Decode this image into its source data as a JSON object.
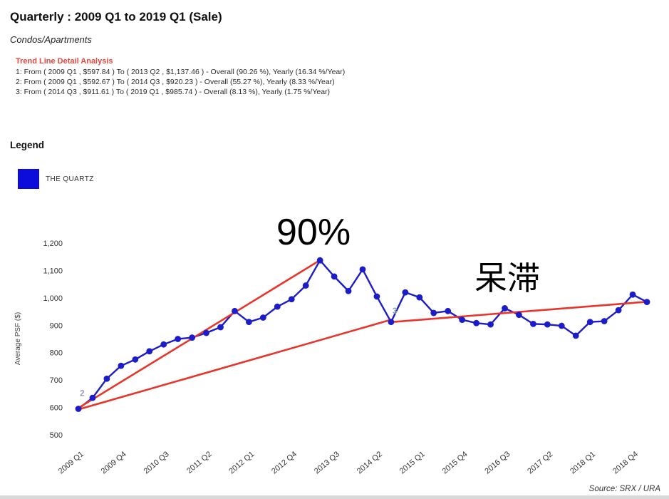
{
  "header": {
    "title": "Quarterly : 2009 Q1 to 2019 Q1 (Sale)",
    "subtitle": "Condos/Apartments"
  },
  "trend_analysis": {
    "heading": "Trend Line Detail Analysis",
    "lines": [
      "1: From ( 2009 Q1 , $597.84 ) To ( 2013 Q2 , $1,137.46 ) - Overall (90.26 %), Yearly (16.34 %/Year)",
      "2: From ( 2009 Q1 , $592.67 ) To ( 2014 Q3 , $920.23 ) - Overall (55.27 %), Yearly (8.33 %/Year)",
      "3: From ( 2014 Q3 , $911.61 ) To ( 2019 Q1 , $985.74 ) - Overall (8.13 %), Yearly (1.75 %/Year)"
    ]
  },
  "legend": {
    "heading": "Legend",
    "items": [
      {
        "label": "THE QUARTZ",
        "color": "#0d0ddb"
      }
    ]
  },
  "annotations": {
    "peak_gain": "90%",
    "stagnant": "呆滞"
  },
  "footer": {
    "source": "Source: SRX / URA"
  },
  "chart_data": {
    "type": "line",
    "title": "Quarterly : 2009 Q1 to 2019 Q1 (Sale)",
    "xlabel": "",
    "ylabel": "Average PSF ($)",
    "ylim": [
      500,
      1200
    ],
    "y_ticks": [
      500,
      600,
      700,
      800,
      900,
      1000,
      1100,
      1200
    ],
    "x_tick_every": 3,
    "grid": false,
    "legend_position": "top-left",
    "trend_color": "#e8352c",
    "categories": [
      "2009 Q1",
      "2009 Q2",
      "2009 Q3",
      "2009 Q4",
      "2010 Q1",
      "2010 Q2",
      "2010 Q3",
      "2010 Q4",
      "2011 Q1",
      "2011 Q2",
      "2011 Q3",
      "2011 Q4",
      "2012 Q1",
      "2012 Q2",
      "2012 Q3",
      "2012 Q4",
      "2013 Q1",
      "2013 Q2",
      "2013 Q3",
      "2013 Q4",
      "2014 Q1",
      "2014 Q2",
      "2014 Q3",
      "2014 Q4",
      "2015 Q1",
      "2015 Q2",
      "2015 Q3",
      "2015 Q4",
      "2016 Q1",
      "2016 Q2",
      "2016 Q3",
      "2016 Q4",
      "2017 Q1",
      "2017 Q2",
      "2017 Q3",
      "2017 Q4",
      "2018 Q1",
      "2018 Q2",
      "2018 Q3",
      "2018 Q4",
      "2019 Q1"
    ],
    "series": [
      {
        "name": "THE QUARTZ",
        "color": "#1c1cc8",
        "values": [
          595,
          635,
          705,
          752,
          775,
          805,
          830,
          850,
          855,
          872,
          893,
          952,
          912,
          928,
          968,
          995,
          1045,
          1137,
          1078,
          1025,
          1104,
          1005,
          912,
          1020,
          1002,
          945,
          952,
          920,
          908,
          903,
          962,
          938,
          905,
          903,
          898,
          862,
          912,
          915,
          955,
          1012,
          985
        ]
      }
    ],
    "trend_lines": [
      {
        "id": 1,
        "from": {
          "x": "2009 Q1",
          "value": 597.84
        },
        "to": {
          "x": "2013 Q2",
          "value": 1137.46
        },
        "overall_pct": 90.26,
        "yearly_pct": 16.34
      },
      {
        "id": 2,
        "from": {
          "x": "2009 Q1",
          "value": 592.67
        },
        "to": {
          "x": "2014 Q3",
          "value": 920.23
        },
        "overall_pct": 55.27,
        "yearly_pct": 8.33
      },
      {
        "id": 3,
        "from": {
          "x": "2014 Q3",
          "value": 911.61
        },
        "to": {
          "x": "2019 Q1",
          "value": 985.74
        },
        "overall_pct": 8.13,
        "yearly_pct": 1.75
      }
    ],
    "trend_markers": [
      {
        "text": "2",
        "x": "2009 Q1",
        "value": 652
      },
      {
        "text": "3",
        "x": "2014 Q3",
        "value": 953
      }
    ]
  }
}
